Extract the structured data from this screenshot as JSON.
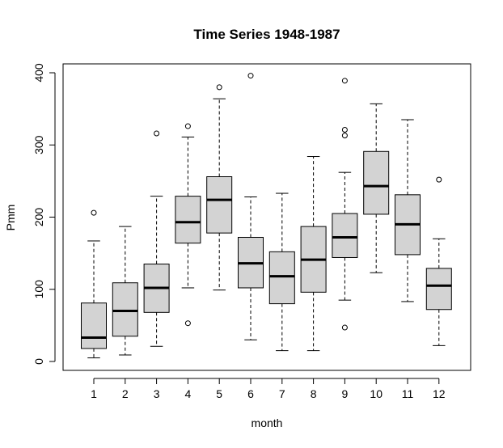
{
  "chart_data": {
    "type": "boxplot",
    "title": "Time Series 1948-1987",
    "xlabel": "month",
    "ylabel": "Pmm",
    "categories": [
      "1",
      "2",
      "3",
      "4",
      "5",
      "6",
      "7",
      "8",
      "9",
      "10",
      "11",
      "12"
    ],
    "ylim": [
      0,
      400
    ],
    "yticks": [
      0,
      100,
      200,
      300,
      400
    ],
    "box_fill": "#d3d3d3",
    "stroke": "#000000",
    "boxes": [
      {
        "whisker_low": 5,
        "q1": 18,
        "median": 33,
        "q3": 81,
        "whisker_high": 167,
        "outliers": [
          206
        ]
      },
      {
        "whisker_low": 9,
        "q1": 35,
        "median": 70,
        "q3": 109,
        "whisker_high": 187,
        "outliers": []
      },
      {
        "whisker_low": 21,
        "q1": 68,
        "median": 102,
        "q3": 135,
        "whisker_high": 229,
        "outliers": [
          316
        ]
      },
      {
        "whisker_low": 102,
        "q1": 164,
        "median": 193,
        "q3": 229,
        "whisker_high": 311,
        "outliers": [
          326,
          53
        ]
      },
      {
        "whisker_low": 99,
        "q1": 178,
        "median": 224,
        "q3": 256,
        "whisker_high": 364,
        "outliers": [
          380
        ]
      },
      {
        "whisker_low": 30,
        "q1": 102,
        "median": 136,
        "q3": 172,
        "whisker_high": 228,
        "outliers": [
          396
        ]
      },
      {
        "whisker_low": 15,
        "q1": 80,
        "median": 118,
        "q3": 152,
        "whisker_high": 233,
        "outliers": []
      },
      {
        "whisker_low": 15,
        "q1": 96,
        "median": 141,
        "q3": 187,
        "whisker_high": 284,
        "outliers": []
      },
      {
        "whisker_low": 85,
        "q1": 144,
        "median": 172,
        "q3": 205,
        "whisker_high": 262,
        "outliers": [
          389,
          321,
          313,
          47
        ]
      },
      {
        "whisker_low": 123,
        "q1": 204,
        "median": 243,
        "q3": 291,
        "whisker_high": 357,
        "outliers": []
      },
      {
        "whisker_low": 83,
        "q1": 148,
        "median": 190,
        "q3": 231,
        "whisker_high": 335,
        "outliers": []
      },
      {
        "whisker_low": 22,
        "q1": 72,
        "median": 105,
        "q3": 129,
        "whisker_high": 170,
        "outliers": [
          252
        ]
      }
    ]
  }
}
